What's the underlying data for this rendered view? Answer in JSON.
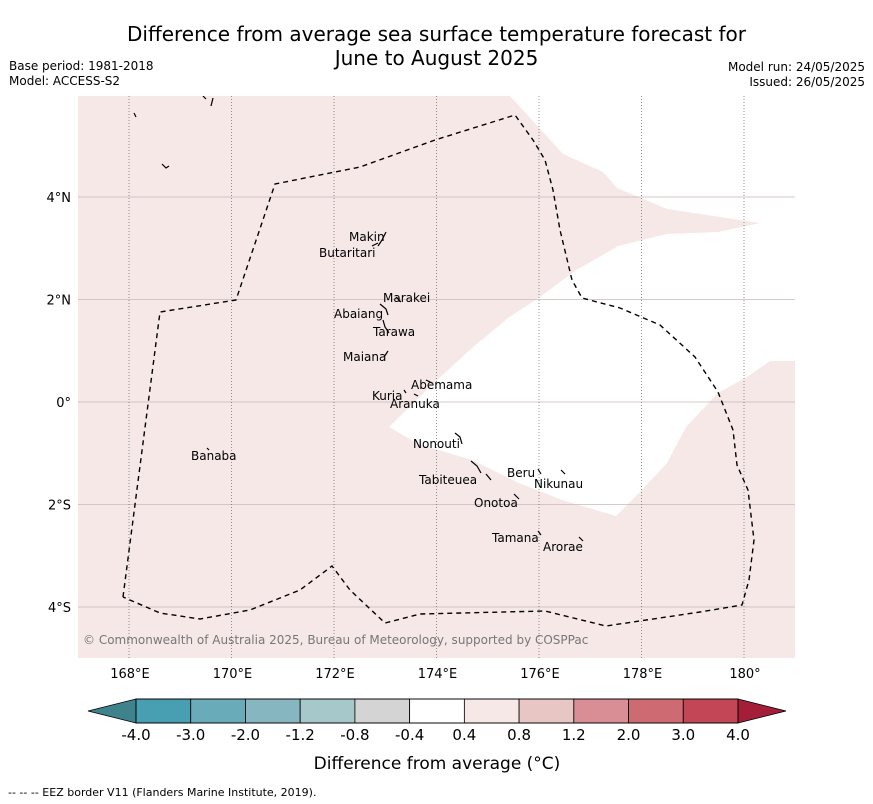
{
  "title": "Difference from average sea surface temperature forecast for June to August 2025",
  "title_lines": [
    "Difference from average sea surface temperature forecast for",
    "June to August 2025"
  ],
  "base_period": "Base period: 1981-2018",
  "model": "Model: ACCESS-S2",
  "model_run": "Model run: 24/05/2025",
  "issued": "Issued: 26/05/2025",
  "copyright": "© Commonwealth of Australia 2025, Bureau of Meteorology, supported by COSPPac",
  "footer": "--  --  -- EEZ border V11 (Flanders Marine Institute, 2019).",
  "map": {
    "lon_range": [
      167,
      181
    ],
    "lat_range": [
      -5.0,
      6.0
    ],
    "lon_ticks": [
      168,
      170,
      172,
      174,
      176,
      178,
      180
    ],
    "lon_tick_labels": [
      "168°E",
      "170°E",
      "172°E",
      "174°E",
      "176°E",
      "178°E",
      "180°"
    ],
    "lat_ticks": [
      4,
      2,
      0,
      -2,
      -4
    ],
    "lat_tick_labels": [
      "4°N",
      "2°N",
      "0°",
      "2°S",
      "4°S"
    ],
    "anomaly_fill_color": "#f5e8e7",
    "neutral_fill_color": "#ffffff",
    "islands": [
      {
        "name": "Makin",
        "lon": 173.0,
        "lat": 3.2
      },
      {
        "name": "Butaritari",
        "lon": 172.9,
        "lat": 3.1
      },
      {
        "name": "Marakei",
        "lon": 173.3,
        "lat": 2.0
      },
      {
        "name": "Abaiang",
        "lon": 172.9,
        "lat": 1.8
      },
      {
        "name": "Tarawa",
        "lon": 173.0,
        "lat": 1.4
      },
      {
        "name": "Maiana",
        "lon": 173.0,
        "lat": 1.0
      },
      {
        "name": "Abemama",
        "lon": 173.8,
        "lat": 0.4
      },
      {
        "name": "Kuria",
        "lon": 173.4,
        "lat": 0.2
      },
      {
        "name": "Aranuka",
        "lon": 173.6,
        "lat": 0.2
      },
      {
        "name": "Nonouti",
        "lon": 174.4,
        "lat": -0.7
      },
      {
        "name": "Banaba",
        "lon": 169.5,
        "lat": -0.9
      },
      {
        "name": "Beru",
        "lon": 176.0,
        "lat": -1.3
      },
      {
        "name": "Nikunau",
        "lon": 176.5,
        "lat": -1.4
      },
      {
        "name": "Tabiteuea",
        "lon": 174.8,
        "lat": -1.2
      },
      {
        "name": "Onotoa",
        "lon": 175.6,
        "lat": -1.8
      },
      {
        "name": "Tamana",
        "lon": 176.0,
        "lat": -2.5
      },
      {
        "name": "Arorae",
        "lon": 176.8,
        "lat": -2.6
      }
    ]
  },
  "colorbar": {
    "label": "Difference from average (°C)",
    "ticks": [
      "-4.0",
      "-3.0",
      "-2.0",
      "-1.2",
      "-0.8",
      "-0.4",
      "0.4",
      "0.8",
      "1.2",
      "2.0",
      "3.0",
      "4.0"
    ],
    "colors": [
      "#479fb1",
      "#69abb9",
      "#86b6c0",
      "#a7c8cb",
      "#d4d4d4",
      "#ffffff",
      "#f5e8e7",
      "#e8c6c3",
      "#d98e95",
      "#cd6a72",
      "#c24655"
    ],
    "under_color": "#3e838c",
    "over_color": "#a41e3a"
  }
}
